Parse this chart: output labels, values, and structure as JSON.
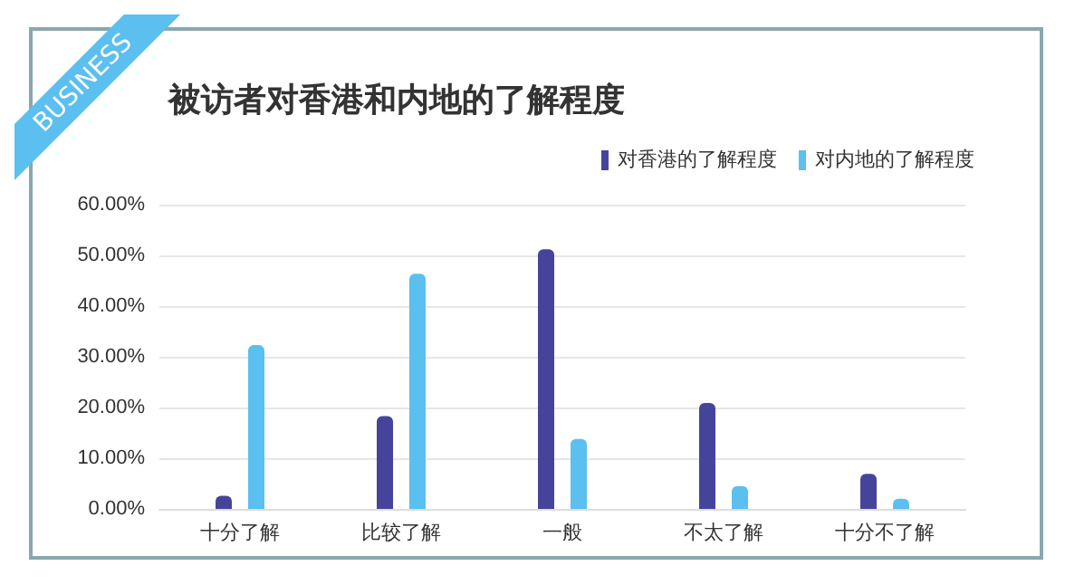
{
  "chart_data": {
    "type": "bar",
    "title": "被访者对香港和内地的了解程度",
    "annotations": [
      "BUSINESS"
    ],
    "categories": [
      "十分了解",
      "比较了解",
      "一般",
      "不太了解",
      "十分不了解"
    ],
    "series": [
      {
        "name": "对香港的了解程度",
        "color": "#46449a",
        "values": [
          2.6,
          18.3,
          51.2,
          20.9,
          6.9
        ]
      },
      {
        "name": "对内地的了解程度",
        "color": "#5bbfef",
        "values": [
          32.3,
          46.4,
          13.8,
          4.5,
          2.0
        ]
      }
    ],
    "ylim": [
      0,
      60
    ],
    "yticks": [
      {
        "value": 0,
        "label": "0.00%"
      },
      {
        "value": 10,
        "label": "10.00%"
      },
      {
        "value": 20,
        "label": "20.00%"
      },
      {
        "value": 30,
        "label": "30.00%"
      },
      {
        "value": 40,
        "label": "40.00%"
      },
      {
        "value": 50,
        "label": "50.00%"
      },
      {
        "value": 60,
        "label": "60.00%"
      }
    ],
    "grid": "y",
    "legend": "top right"
  }
}
